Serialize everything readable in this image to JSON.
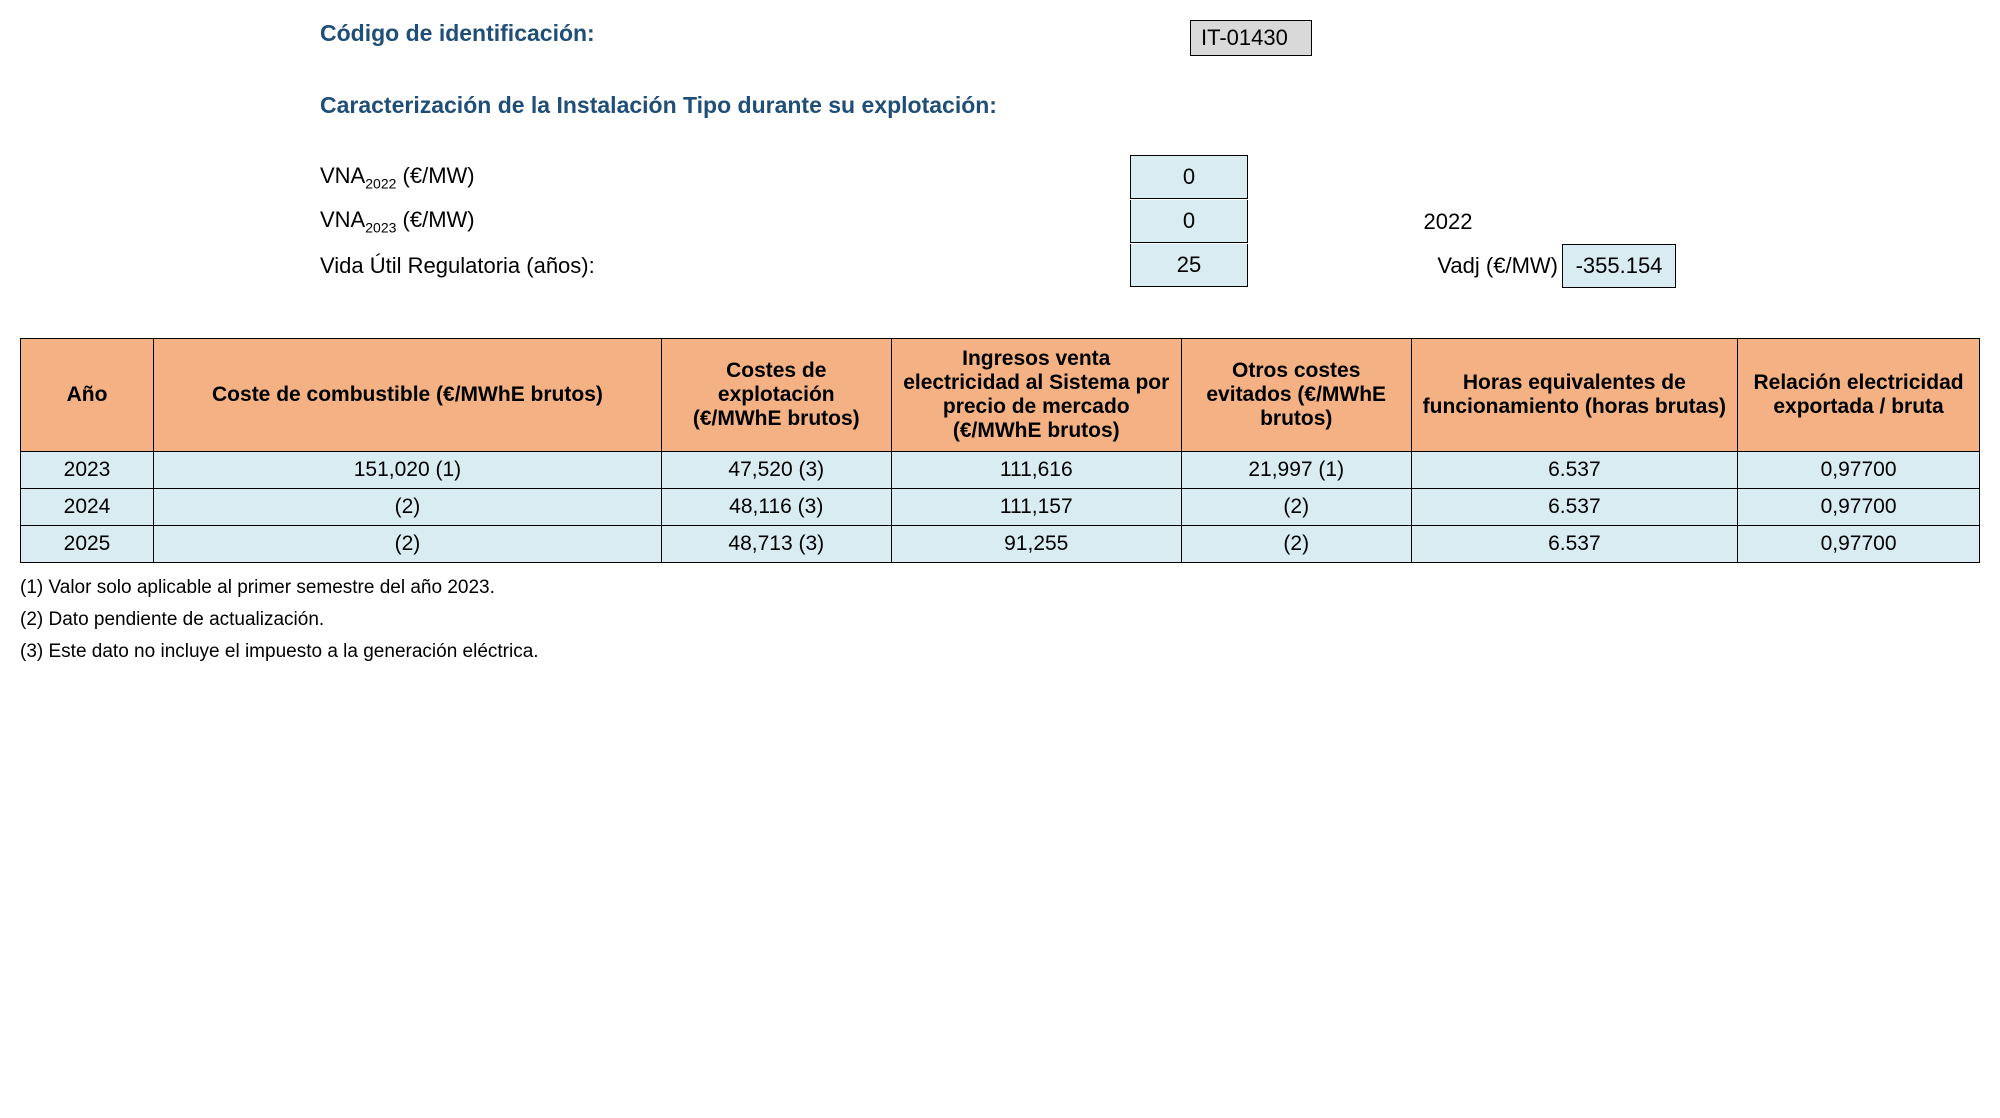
{
  "header": {
    "id_label": "Código de identificación:",
    "id_value": "IT-01430",
    "section_title": "Caracterización de la Instalación Tipo durante su explotación:"
  },
  "params": {
    "vna2022_label_prefix": "VNA",
    "vna2022_sub": "2022",
    "vna2022_label_suffix": " (€/MW)",
    "vna2022_value": "0",
    "vna2023_label_prefix": "VNA",
    "vna2023_sub": "2023",
    "vna2023_label_suffix": " (€/MW)",
    "vna2023_value": "0",
    "vna2023_year": "2022",
    "vida_label": "Vida Útil Regulatoria (años):",
    "vida_value": "25",
    "vadj_label": "Vadj (€/MW)",
    "vadj_value": "-355.154"
  },
  "table": {
    "headers": {
      "c0": "Año",
      "c1": "Coste de combustible (€/MWhE brutos)",
      "c2": "Costes de explotación (€/MWhE brutos)",
      "c3": "Ingresos venta electricidad al Sistema por precio de mercado (€/MWhE brutos)",
      "c4": "Otros costes evitados (€/MWhE brutos)",
      "c5": "Horas equivalentes de funcionamiento (horas brutas)",
      "c6": "Relación electricidad exportada / bruta"
    },
    "rows": [
      {
        "c0": "2023",
        "c1": "151,020 (1)",
        "c2": "47,520 (3)",
        "c3": "111,616",
        "c4": "21,997 (1)",
        "c5": "6.537",
        "c6": "0,97700"
      },
      {
        "c0": "2024",
        "c1": "(2)",
        "c2": "48,116 (3)",
        "c3": "111,157",
        "c4": "(2)",
        "c5": "6.537",
        "c6": "0,97700"
      },
      {
        "c0": "2025",
        "c1": "(2)",
        "c2": "48,713 (3)",
        "c3": "91,255",
        "c4": "(2)",
        "c5": "6.537",
        "c6": "0,97700"
      }
    ],
    "col_widths": [
      "110px",
      "420px",
      "190px",
      "240px",
      "190px",
      "270px",
      "200px"
    ]
  },
  "footnotes": {
    "f1": "(1) Valor solo aplicable al primer semestre del año 2023.",
    "f2": "(2) Dato pendiente de actualización.",
    "f3": "(3) Este dato no incluye el impuesto a la generación eléctrica."
  },
  "colors": {
    "header_bg": "#f4b183",
    "cell_bg": "#d9ecf2",
    "id_bg": "#d9d9d9",
    "title_color": "#1f4e79",
    "border": "#000000"
  }
}
